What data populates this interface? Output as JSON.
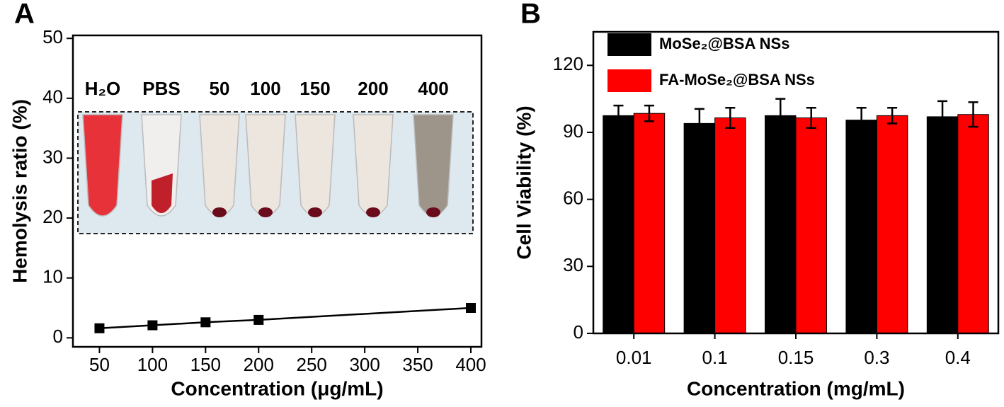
{
  "chart_data": [
    {
      "type": "line",
      "panel_label": "A",
      "x_label": "Concentration (μg/mL)",
      "y_label": "Hemolysis ratio (%)",
      "x": [
        50,
        100,
        150,
        200,
        400
      ],
      "series": [
        {
          "color": "#000000",
          "values": [
            1.6,
            2.1,
            2.6,
            3.0,
            5.0
          ]
        }
      ],
      "marker": "square",
      "xlim": [
        25,
        410
      ],
      "xticks": [
        50,
        100,
        150,
        200,
        250,
        300,
        350,
        400
      ],
      "ylim": [
        -1.5,
        50.5
      ],
      "yticks": [
        0,
        10,
        20,
        30,
        40,
        50
      ],
      "inset_labels": [
        "H₂O",
        "PBS",
        "50",
        "100",
        "150",
        "200",
        "400"
      ]
    },
    {
      "type": "bar",
      "panel_label": "B",
      "x_label": "Concentration (mg/mL)",
      "y_label": "Cell Viability (%)",
      "categories": [
        "0.01",
        "0.1",
        "0.15",
        "0.3",
        "0.4"
      ],
      "series": [
        {
          "name": "MoSe₂@BSA NSs",
          "color": "#000000",
          "values": [
            97.5,
            94,
            97.5,
            95.5,
            97
          ],
          "errors": [
            4.5,
            6.5,
            7.5,
            5.5,
            7
          ]
        },
        {
          "name": "FA-MoSe₂@BSA NSs",
          "color": "#ff0000",
          "values": [
            98.5,
            96.5,
            96.5,
            97.5,
            98
          ],
          "errors": [
            3.5,
            4.5,
            4.5,
            3.5,
            5.5
          ]
        }
      ],
      "ylim": [
        0,
        135
      ],
      "yticks": [
        0,
        30,
        60,
        90,
        120
      ],
      "legend": "upper left"
    }
  ]
}
